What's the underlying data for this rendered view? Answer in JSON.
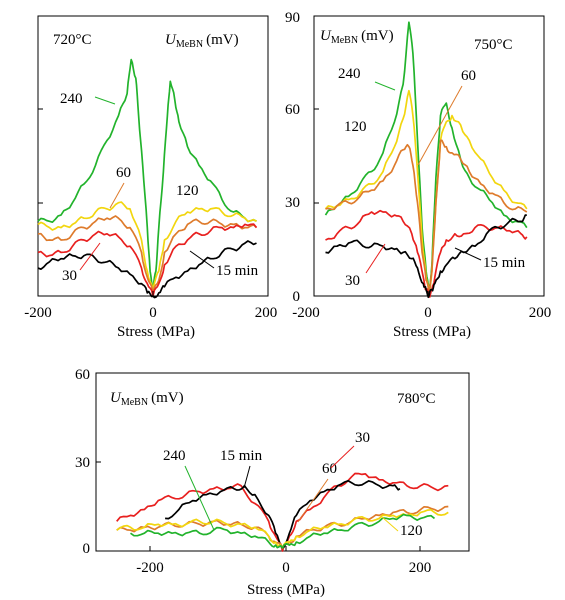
{
  "colors": {
    "15": "#000000",
    "30": "#e8201f",
    "60": "#de7b2c",
    "120": "#f2d60f",
    "240": "#22b32c"
  },
  "chart_data": [
    {
      "type": "line",
      "temperature": "720°C",
      "ylabel": {
        "symbol": "U",
        "subscript": "MeBN",
        "unit": "(mV)"
      },
      "xlabel": "Stress (MPa)",
      "xlim": [
        -200,
        200
      ],
      "ylim": [
        0,
        90
      ],
      "x_ticks": [
        "-200",
        "0",
        "200"
      ],
      "y_ticks": [],
      "series": [
        {
          "name": "240",
          "label": "240",
          "x": [
            -200,
            -180,
            -160,
            -140,
            -120,
            -100,
            -80,
            -60,
            -45,
            -38,
            -30,
            -25,
            -18,
            -10,
            -5,
            0,
            5,
            10,
            18,
            25,
            30,
            38,
            45,
            60,
            80,
            100,
            120,
            140,
            160,
            180
          ],
          "y": [
            24,
            24,
            26,
            30,
            36,
            42,
            50,
            58,
            65,
            76,
            70,
            58,
            42,
            22,
            8,
            2,
            8,
            22,
            40,
            58,
            69,
            63,
            56,
            48,
            42,
            37,
            31,
            27,
            25,
            24
          ]
        },
        {
          "name": "120",
          "label": "120",
          "x": [
            -200,
            -180,
            -160,
            -140,
            -120,
            -100,
            -80,
            -60,
            -40,
            -20,
            -10,
            0,
            10,
            20,
            40,
            60,
            80,
            100,
            120,
            140,
            160,
            180
          ],
          "y": [
            23,
            22,
            22,
            23,
            25,
            27,
            28,
            30,
            28,
            18,
            8,
            2,
            8,
            18,
            24,
            27,
            28,
            28,
            27,
            26,
            25,
            24
          ]
        },
        {
          "name": "60",
          "label": "60",
          "x": [
            -200,
            -180,
            -160,
            -140,
            -120,
            -100,
            -80,
            -60,
            -40,
            -20,
            -10,
            0,
            10,
            20,
            40,
            60,
            80,
            100,
            120,
            140,
            160,
            180
          ],
          "y": [
            20,
            18,
            18,
            20,
            22,
            24,
            25,
            25,
            22,
            14,
            6,
            1,
            5,
            14,
            20,
            23,
            24,
            24,
            23,
            23,
            22,
            22
          ]
        },
        {
          "name": "30",
          "label": "30",
          "x": [
            -200,
            -180,
            -160,
            -140,
            -120,
            -100,
            -80,
            -60,
            -40,
            -20,
            -10,
            0,
            10,
            20,
            40,
            60,
            80,
            100,
            120,
            140,
            160,
            180
          ],
          "y": [
            14,
            13,
            14,
            16,
            18,
            20,
            20,
            19,
            16,
            9,
            4,
            0,
            4,
            10,
            16,
            18,
            20,
            21,
            22,
            22,
            23,
            22
          ]
        },
        {
          "name": "15 min",
          "label": "15 min",
          "x": [
            -200,
            -180,
            -160,
            -140,
            -120,
            -100,
            -80,
            -60,
            -40,
            -20,
            -10,
            0,
            10,
            20,
            40,
            60,
            80,
            100,
            120,
            140,
            160,
            180
          ],
          "y": [
            9,
            11,
            12,
            13,
            13,
            12,
            11,
            9,
            7,
            4,
            1,
            0,
            1,
            3,
            6,
            8,
            10,
            12,
            14,
            15,
            17,
            17
          ]
        }
      ]
    },
    {
      "type": "line",
      "temperature": "750°C",
      "ylabel": {
        "symbol": "U",
        "subscript": "MeBN",
        "unit": "(mV)"
      },
      "xlabel": "Stress (MPa)",
      "xlim": [
        -200,
        200
      ],
      "ylim": [
        0,
        90
      ],
      "x_ticks": [
        "-200",
        "0",
        "200"
      ],
      "y_ticks": [
        "90",
        "60",
        "30",
        "0"
      ],
      "series": [
        {
          "name": "240",
          "label": "240",
          "x": [
            -180,
            -160,
            -140,
            -120,
            -100,
            -80,
            -60,
            -45,
            -35,
            -28,
            -20,
            -12,
            -5,
            0,
            5,
            12,
            20,
            30,
            40,
            55,
            70,
            90,
            110,
            130,
            150,
            170
          ],
          "y": [
            26,
            29,
            32,
            36,
            40,
            46,
            56,
            68,
            88,
            78,
            50,
            22,
            8,
            1,
            10,
            38,
            58,
            62,
            54,
            44,
            38,
            34,
            30,
            26,
            24,
            22
          ]
        },
        {
          "name": "120",
          "label": "120",
          "x": [
            -180,
            -160,
            -140,
            -120,
            -100,
            -80,
            -60,
            -45,
            -35,
            -28,
            -20,
            -12,
            -5,
            0,
            5,
            12,
            20,
            30,
            40,
            55,
            70,
            90,
            110,
            130,
            150,
            170
          ],
          "y": [
            28,
            29,
            31,
            33,
            36,
            40,
            48,
            57,
            66,
            58,
            40,
            18,
            6,
            1,
            8,
            30,
            50,
            56,
            58,
            55,
            50,
            44,
            38,
            34,
            30,
            28
          ]
        },
        {
          "name": "60",
          "label": "60",
          "x": [
            -180,
            -160,
            -140,
            -120,
            -100,
            -80,
            -60,
            -45,
            -35,
            -28,
            -20,
            -12,
            -5,
            0,
            5,
            12,
            20,
            30,
            40,
            55,
            70,
            90,
            110,
            130,
            150,
            170
          ],
          "y": [
            28,
            29,
            30,
            32,
            34,
            37,
            42,
            47,
            48,
            42,
            30,
            14,
            5,
            1,
            8,
            30,
            50,
            48,
            46,
            44,
            40,
            36,
            33,
            30,
            28,
            27
          ]
        },
        {
          "name": "30",
          "label": "30",
          "x": [
            -180,
            -160,
            -140,
            -120,
            -100,
            -80,
            -60,
            -45,
            -30,
            -20,
            -10,
            -5,
            0,
            5,
            10,
            20,
            30,
            45,
            60,
            80,
            100,
            120,
            140,
            160,
            170
          ],
          "y": [
            18,
            20,
            22,
            24,
            27,
            27,
            26,
            24,
            20,
            14,
            6,
            2,
            0,
            2,
            6,
            14,
            18,
            20,
            20,
            22,
            22,
            22,
            21,
            20,
            19
          ]
        },
        {
          "name": "15 min",
          "label": "15 min",
          "x": [
            -180,
            -160,
            -140,
            -120,
            -100,
            -80,
            -60,
            -45,
            -30,
            -20,
            -10,
            -5,
            0,
            5,
            10,
            20,
            30,
            45,
            60,
            80,
            100,
            120,
            140,
            160,
            170
          ],
          "y": [
            14,
            16,
            17,
            17,
            16,
            16,
            15,
            14,
            12,
            9,
            4,
            2,
            0,
            2,
            4,
            8,
            10,
            12,
            14,
            16,
            20,
            22,
            24,
            24,
            26
          ]
        }
      ]
    },
    {
      "type": "line",
      "temperature": "780°C",
      "ylabel": {
        "symbol": "U",
        "subscript": "MeBN",
        "unit": "(mV)"
      },
      "xlabel": "Stress (MPa)",
      "xlim": [
        -270,
        270
      ],
      "ylim": [
        0,
        60
      ],
      "x_ticks": [
        "-200",
        "0",
        "200"
      ],
      "y_ticks": [
        "60",
        "30",
        "0"
      ],
      "series": [
        {
          "name": "30",
          "label": "30",
          "x": [
            -240,
            -220,
            -200,
            -180,
            -160,
            -140,
            -120,
            -100,
            -80,
            -60,
            -40,
            -20,
            -10,
            0,
            10,
            20,
            40,
            60,
            80,
            100,
            120,
            140,
            160,
            180,
            200,
            220,
            240
          ],
          "y": [
            10,
            12,
            14,
            17,
            18,
            19,
            20,
            21,
            21,
            22,
            16,
            10,
            5,
            0,
            5,
            10,
            14,
            18,
            22,
            25,
            26,
            24,
            23,
            22,
            22,
            21,
            22
          ]
        },
        {
          "name": "15 min",
          "label": "15 min",
          "x": [
            -170,
            -150,
            -130,
            -110,
            -90,
            -70,
            -55,
            -40,
            -20,
            -10,
            0,
            10,
            20,
            40,
            60,
            80,
            100,
            120,
            140,
            160,
            170
          ],
          "y": [
            11,
            14,
            17,
            19,
            20,
            21,
            22,
            19,
            12,
            6,
            1,
            6,
            12,
            17,
            20,
            22,
            23,
            23,
            22,
            22,
            21
          ]
        },
        {
          "name": "60",
          "label": "60",
          "x": [
            -240,
            -220,
            -200,
            -180,
            -160,
            -140,
            -120,
            -100,
            -80,
            -60,
            -40,
            -20,
            -10,
            0,
            10,
            20,
            40,
            60,
            80,
            100,
            120,
            140,
            160,
            180,
            200,
            220,
            240
          ],
          "y": [
            7,
            7,
            8,
            8,
            9,
            9,
            9,
            10,
            9,
            9,
            8,
            5,
            3,
            1,
            3,
            5,
            7,
            8,
            9,
            10,
            11,
            12,
            13,
            13,
            14,
            14,
            15
          ]
        },
        {
          "name": "120",
          "label": "120",
          "x": [
            -240,
            -220,
            -200,
            -180,
            -160,
            -140,
            -120,
            -100,
            -80,
            -60,
            -40,
            -20,
            -10,
            0,
            10,
            20,
            40,
            60,
            80,
            100,
            120,
            140,
            160,
            180,
            200,
            220,
            240
          ],
          "y": [
            7,
            8,
            8,
            9,
            9,
            9,
            10,
            10,
            9,
            9,
            8,
            5,
            3,
            1,
            3,
            5,
            7,
            8,
            9,
            10,
            11,
            11,
            12,
            12,
            13,
            13,
            13
          ]
        },
        {
          "name": "240",
          "label": "240",
          "x": [
            -220,
            -200,
            -180,
            -160,
            -140,
            -120,
            -100,
            -80,
            -60,
            -40,
            -20,
            -10,
            0,
            10,
            20,
            40,
            60,
            80,
            100,
            120,
            140,
            160,
            180,
            200,
            220
          ],
          "y": [
            6,
            6,
            6,
            6,
            6,
            6,
            7,
            7,
            6,
            5,
            3,
            2,
            1,
            2,
            3,
            5,
            6,
            7,
            8,
            9,
            10,
            11,
            12,
            11,
            11
          ]
        }
      ]
    }
  ]
}
